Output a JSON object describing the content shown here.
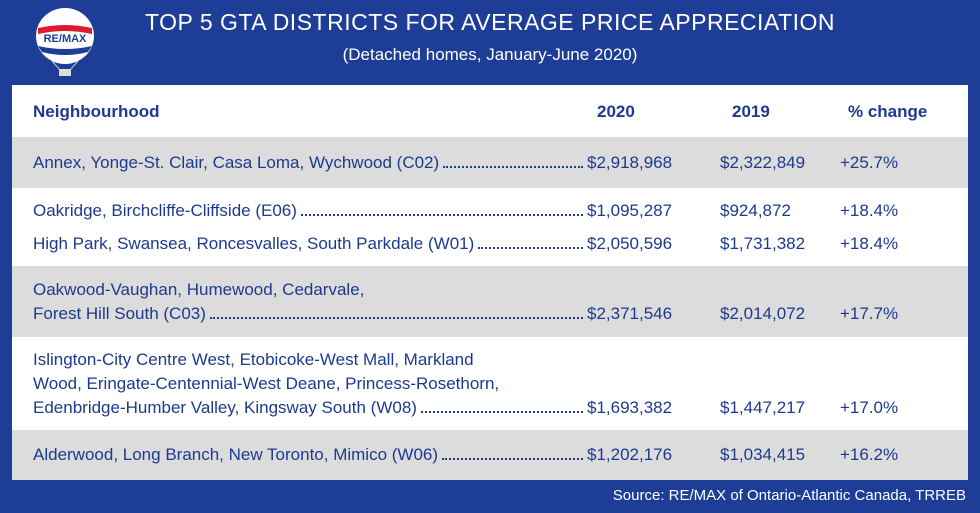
{
  "logo_text": "RE/MAX",
  "header": {
    "title": "TOP 5 GTA DISTRICTS FOR AVERAGE PRICE APPRECIATION",
    "subtitle": "(Detached homes, January-June 2020)"
  },
  "table": {
    "columns": [
      "Neighbourhood",
      "2020",
      "2019",
      "% change"
    ],
    "groups": [
      [
        {
          "name": [
            "Annex, Yonge-St. Clair, Casa Loma, Wychwood (C02)"
          ],
          "price_2020": "$2,918,968",
          "price_2019": "$2,322,849",
          "change": "+25.7%"
        }
      ],
      [
        {
          "name": [
            "Oakridge, Birchcliffe-Cliffside (E06)"
          ],
          "price_2020": "$1,095,287",
          "price_2019": "$924,872",
          "change": "+18.4%"
        },
        {
          "name": [
            "High Park, Swansea, Roncesvalles, South Parkdale (W01)"
          ],
          "price_2020": "$2,050,596",
          "price_2019": "$1,731,382",
          "change": "+18.4%"
        }
      ],
      [
        {
          "name": [
            "Oakwood-Vaughan, Humewood, Cedarvale,",
            "Forest Hill South (C03)"
          ],
          "price_2020": "$2,371,546",
          "price_2019": "$2,014,072",
          "change": "+17.7%"
        }
      ],
      [
        {
          "name": [
            "Islington-City Centre West, Etobicoke-West Mall, Markland",
            "Wood, Eringate-Centennial-West Deane, Princess-Rosethorn,",
            "Edenbridge-Humber Valley, Kingsway South (W08)"
          ],
          "price_2020": "$1,693,382",
          "price_2019": "$1,447,217",
          "change": "+17.0%"
        }
      ],
      [
        {
          "name": [
            "Alderwood, Long Branch, New Toronto, Mimico (W06)"
          ],
          "price_2020": "$1,202,176",
          "price_2019": "$1,034,415",
          "change": "+16.2%"
        }
      ]
    ]
  },
  "source": "Source:  RE/MAX of Ontario-Atlantic Canada, TRREB"
}
